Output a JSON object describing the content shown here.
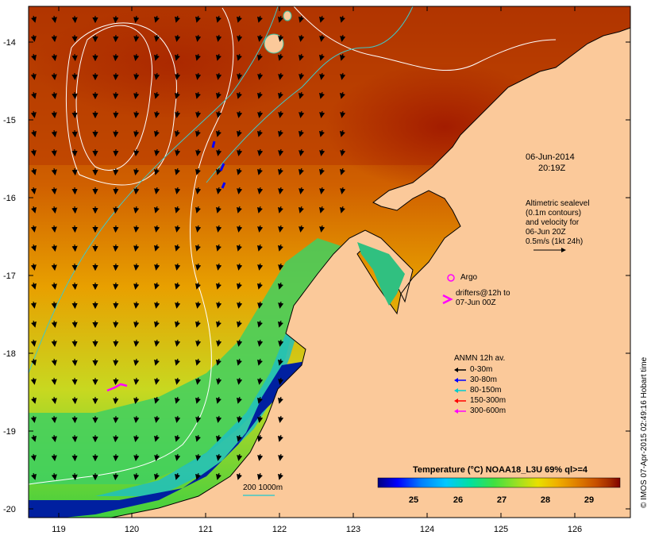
{
  "header": {
    "date_line1": "06-Jun-2014",
    "date_line2": "20:19Z"
  },
  "axes": {
    "y_ticks": [
      "-14",
      "-15",
      "-16",
      "-17",
      "-18",
      "-19",
      "-20"
    ],
    "x_ticks": [
      "119",
      "120",
      "121",
      "122",
      "123",
      "124",
      "125",
      "126"
    ]
  },
  "altimetry_note": {
    "lines": [
      "Altimetric sealevel",
      "(0.1m contours)",
      "and velocity for",
      "06-Jun 20Z",
      "0.5m/s (1kt 24h)"
    ]
  },
  "argo_legend": {
    "argo_label": "Argo",
    "drifters_line1": "drifters@12h to",
    "drifters_line2": "07-Jun 00Z"
  },
  "anmn_legend": {
    "title": "ANMN 12h av.",
    "items": [
      {
        "label": "0-30m",
        "color": "#000000"
      },
      {
        "label": "30-80m",
        "color": "#0000ff"
      },
      {
        "label": "80-150m",
        "color": "#00cccc"
      },
      {
        "label": "150-300m",
        "color": "#ff0000"
      },
      {
        "label": "300-600m",
        "color": "#ff00ff"
      }
    ]
  },
  "isobath_label": "200  1000m",
  "colorbar": {
    "title": "Temperature (°C) NOAA18_L3U 69% ql>=4",
    "ticks": [
      "25",
      "26",
      "27",
      "28",
      "29"
    ],
    "colors": [
      "#000080",
      "#0000ff",
      "#0080ff",
      "#00c8ff",
      "#00e0a0",
      "#40e040",
      "#a0e020",
      "#e8e000",
      "#f0b000",
      "#e08000",
      "#c85000",
      "#a02800",
      "#800000"
    ]
  },
  "credit": "© IMOS 07-Apr-2015 02:49:16 Hobart time",
  "colors": {
    "land": "#fbc99a",
    "warm": "#c04000",
    "hot": "#a02000",
    "cool": "#60d060"
  }
}
